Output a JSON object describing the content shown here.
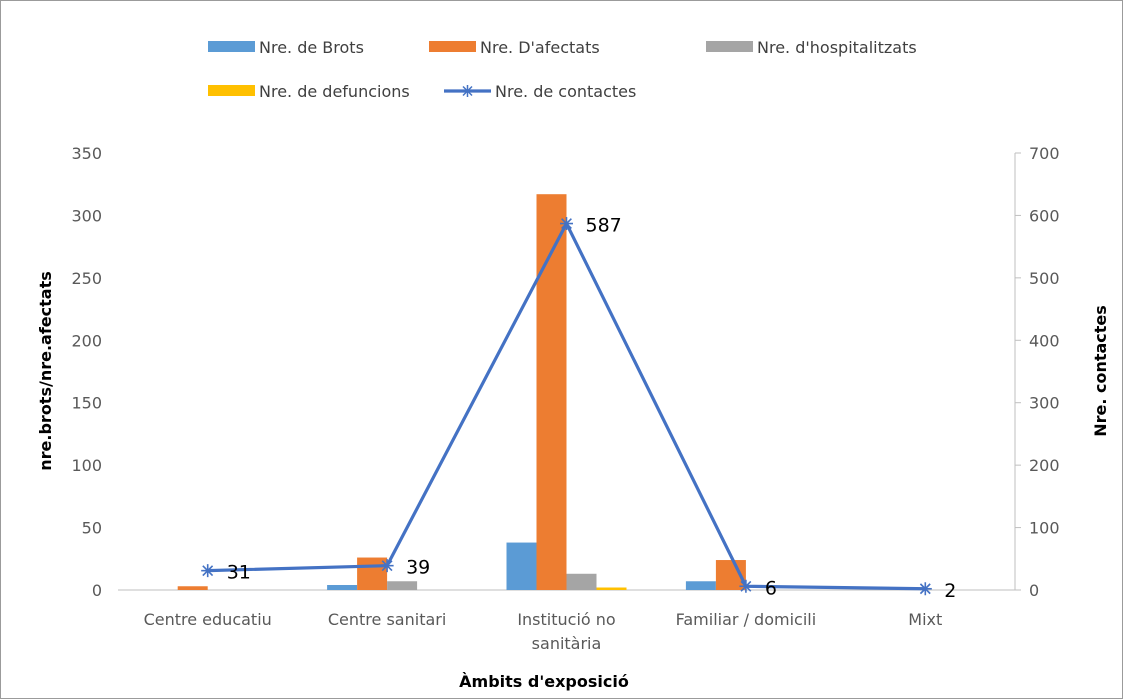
{
  "chart_data": {
    "type": "bar",
    "categories": [
      [
        "Centre educatiu"
      ],
      [
        "Centre sanitari"
      ],
      [
        "Institució no",
        "sanitària"
      ],
      [
        "Familiar / domicili"
      ],
      [
        "Mixt"
      ]
    ],
    "series": [
      {
        "name": "Nre. de Brots",
        "type": "bar",
        "axis": "left",
        "color": "#5b9bd5",
        "values": [
          0,
          4,
          38,
          7,
          0
        ]
      },
      {
        "name": "Nre. D'afectats",
        "type": "bar",
        "axis": "left",
        "color": "#ed7d31",
        "values": [
          3,
          26,
          317,
          24,
          0
        ]
      },
      {
        "name": "Nre. d'hospitalitzats",
        "type": "bar",
        "axis": "left",
        "color": "#a5a5a5",
        "values": [
          0,
          7,
          13,
          0,
          0
        ]
      },
      {
        "name": "Nre. de defuncions",
        "type": "bar",
        "axis": "left",
        "color": "#ffc000",
        "values": [
          0,
          0,
          2,
          0,
          0
        ]
      },
      {
        "name": "Nre. de contactes",
        "type": "line",
        "axis": "right",
        "color": "#4472c4",
        "marker": "asterisk",
        "values": [
          31,
          39,
          587,
          6,
          2
        ],
        "data_labels": [
          "31",
          "39",
          "587",
          "6",
          "2"
        ]
      }
    ],
    "xlabel": "Àmbits d'exposició",
    "ylabel_left": "nre.brots/nre.afectats",
    "ylabel_right": "Nre. contactes",
    "ylim_left": [
      0,
      350
    ],
    "ylim_right": [
      0,
      700
    ],
    "yticks_left": [
      "0",
      "50",
      "100",
      "150",
      "200",
      "250",
      "300",
      "350"
    ],
    "yticks_right": [
      "0",
      "100",
      "200",
      "300",
      "400",
      "500",
      "600",
      "700"
    ],
    "grid": false,
    "legend_position": "top"
  }
}
